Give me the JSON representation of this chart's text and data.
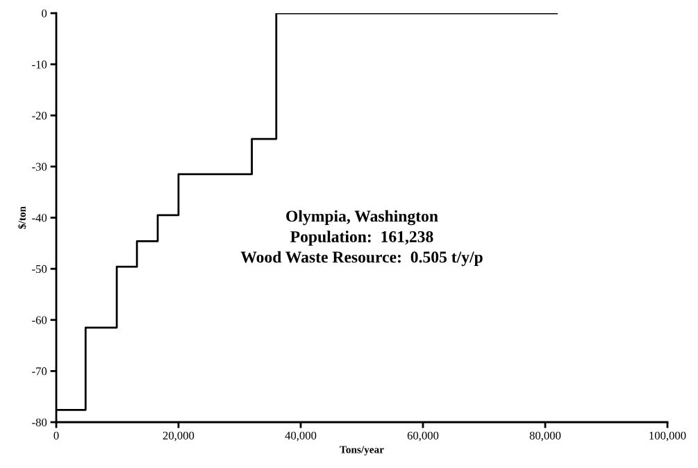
{
  "chart_data": {
    "type": "step",
    "xlabel": "Tons/year",
    "ylabel": "$/ton",
    "x": [
      0,
      4800,
      9900,
      13200,
      16600,
      20000,
      32000,
      36000,
      81900
    ],
    "series": [
      {
        "color": "#000000",
        "values": [
          -77.6,
          -61.5,
          -49.6,
          -44.6,
          -39.5,
          -31.5,
          -24.6,
          0,
          0
        ]
      }
    ],
    "xlim": [
      0,
      100000
    ],
    "xticks": [
      {
        "value": 0,
        "label": "0"
      },
      {
        "value": 20000,
        "label": "20,000"
      },
      {
        "value": 40000,
        "label": "40,000"
      },
      {
        "value": 60000,
        "label": "60,000"
      },
      {
        "value": 80000,
        "label": "80,000"
      },
      {
        "value": 100000,
        "label": "100,000"
      }
    ],
    "ylim": [
      -80,
      0
    ],
    "yticks": [
      -80,
      -70,
      -60,
      -50,
      -40,
      -30,
      -20,
      -10,
      0
    ],
    "annotations": [
      "Olympia, Washington",
      "Population:  161,238",
      "Wood Waste Resource:  0.505 t/y/p"
    ],
    "grid": false,
    "legend": false,
    "marker": "none",
    "line_style": "solid"
  }
}
